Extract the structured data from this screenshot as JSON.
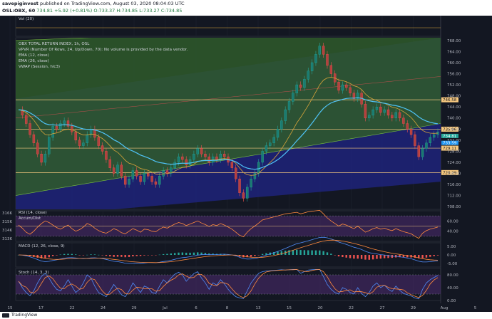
{
  "header": {
    "line1_author": "savepiginvest",
    "line1_rest": "published on TradingView.com, August 03, 2020 08:04:03 UTC",
    "symbol": "OSL:OBX, 60",
    "last": "734.81",
    "change": "+5.92 (+0.81%)",
    "ohlc": "O:733.37 H:734.85 L:733.27 C:734.85"
  },
  "footer": {
    "brand": "TradingView"
  },
  "colors": {
    "background": "#131722",
    "channel_green": "#2f5a2a",
    "channel_blue": "#1e237a",
    "ema12": "#d9a53a",
    "ema26": "#4fc3f7",
    "level_line": "#f5c77e",
    "price_box": "#f5c77e",
    "rsi": "#ff8a3d",
    "rsi_band": "#4a2a6a",
    "stoch_k": "#4f8bf7",
    "stoch_d": "#ff8a3d",
    "macd_line": "#4f8bf7",
    "signal_line": "#ff8a3d"
  },
  "panes": {
    "vol": {
      "label": "Vol (20)"
    },
    "main": {
      "title": "OBX TOTAL RETURN INDEX, 1h, OSL",
      "legend": [
        "VPVR (Number Of Rows, 24, Up/Down, 70): No volume is provided by the data vendor.",
        "EMA (12, close)",
        "EMA (26, close)",
        "VWAP (Session, hlc3)"
      ]
    },
    "rsi": {
      "label": "RSI (14, close)",
      "label2": "Accum/Dist"
    },
    "macd": {
      "label": "MACD (12, 26, close, 9)"
    },
    "stoch": {
      "label": "Stoch (14, 3, 3)"
    }
  },
  "chart_data": [
    {
      "type": "candlestick",
      "title": "OBX TOTAL RETURN INDEX, 1h, OSL",
      "x_ticks": [
        "15",
        "17",
        "22",
        "24",
        "29",
        "Jul",
        "6",
        "8",
        "13",
        "15",
        "20",
        "22",
        "27",
        "29",
        "Aug",
        "5"
      ],
      "y_ticks": [
        708.0,
        712.0,
        716.0,
        720.0,
        724.0,
        728.0,
        732.0,
        736.0,
        740.0,
        744.0,
        748.0,
        752.0,
        756.0,
        760.0,
        764.0,
        768.0
      ],
      "ylim": [
        707.0,
        769.0
      ],
      "price_labels": [
        "746.58",
        "735.96",
        "729.11",
        "720.29"
      ],
      "current_labels": [
        "734.81",
        "733.59"
      ],
      "closes": [
        743,
        741,
        738,
        734,
        731,
        727,
        724,
        727,
        733,
        737,
        736,
        738,
        739,
        737,
        735,
        732,
        730,
        731,
        734,
        736,
        733,
        730,
        728,
        725,
        722,
        720,
        723,
        719,
        716,
        718,
        721,
        719,
        717,
        720,
        719,
        717,
        716,
        719,
        721,
        720,
        722,
        724,
        726,
        725,
        723,
        725,
        727,
        729,
        727,
        726,
        724,
        726,
        725,
        727,
        726,
        724,
        722,
        718,
        713,
        711,
        715,
        718,
        720,
        724,
        728,
        730,
        731,
        733,
        736,
        739,
        743,
        746,
        749,
        752,
        751,
        754,
        757,
        760,
        763,
        766,
        763,
        759,
        756,
        753,
        750,
        752,
        751,
        749,
        747,
        749,
        745,
        740,
        741,
        743,
        744,
        742,
        743,
        741,
        740,
        742,
        740,
        738,
        736,
        734,
        730,
        726,
        729,
        731,
        733,
        734,
        735
      ],
      "levels": [
        746.58,
        735.96,
        729.11,
        720.29
      ],
      "series": [
        {
          "name": "EMA (12, close)"
        },
        {
          "name": "EMA (26, close)"
        },
        {
          "name": "VWAP (Session, hlc3)"
        }
      ]
    },
    {
      "type": "line",
      "title": "RSI (14, close)",
      "y_ticks": [
        80.0,
        60.0,
        40.0,
        20.0
      ],
      "left_ticks": [
        "316K",
        "315K",
        "314K",
        "313K"
      ],
      "bands": [
        70,
        30
      ],
      "ylim": [
        20.0,
        80.0
      ],
      "values": [
        52,
        46,
        38,
        34,
        40,
        48,
        55,
        60,
        57,
        52,
        47,
        44,
        48,
        52,
        45,
        40,
        43,
        48,
        55,
        52,
        46,
        41,
        38,
        36,
        40,
        45,
        42,
        37,
        35,
        40,
        45,
        42,
        38,
        44,
        43,
        40,
        39,
        44,
        48,
        46,
        50,
        54,
        57,
        55,
        51,
        54,
        57,
        60,
        56,
        53,
        49,
        53,
        51,
        55,
        52,
        48,
        44,
        38,
        32,
        29,
        38,
        45,
        50,
        56,
        62,
        64,
        66,
        68,
        70,
        72,
        74,
        75,
        76,
        77,
        74,
        76,
        78,
        79,
        80,
        81,
        74,
        66,
        60,
        55,
        50,
        54,
        52,
        48,
        45,
        50,
        44,
        38,
        41,
        45,
        47,
        44,
        46,
        43,
        41,
        45,
        42,
        39,
        37,
        35,
        30,
        26,
        36,
        41,
        44,
        46,
        48
      ]
    },
    {
      "type": "line",
      "title": "MACD (12, 26, close, 9)",
      "y_ticks": [
        5.0,
        0.0,
        -5.0
      ],
      "ylim": [
        -7.0,
        7.0
      ]
    },
    {
      "type": "line",
      "title": "Stoch (14, 3, 3)",
      "y_ticks": [
        80.0,
        40.0,
        0.0
      ],
      "ylim": [
        0.0,
        100.0
      ],
      "bands": [
        80,
        20
      ],
      "values": [
        60,
        40,
        25,
        15,
        30,
        55,
        75,
        85,
        70,
        50,
        35,
        30,
        45,
        65,
        45,
        25,
        35,
        55,
        80,
        70,
        45,
        25,
        18,
        12,
        30,
        50,
        35,
        18,
        12,
        30,
        55,
        40,
        25,
        45,
        40,
        25,
        22,
        45,
        65,
        55,
        70,
        82,
        88,
        80,
        60,
        72,
        84,
        90,
        70,
        55,
        35,
        55,
        48,
        65,
        52,
        35,
        22,
        12,
        8,
        6,
        30,
        55,
        70,
        85,
        90,
        92,
        93,
        94,
        95,
        96,
        95,
        96,
        97,
        97,
        85,
        90,
        95,
        96,
        97,
        97,
        75,
        50,
        35,
        25,
        20,
        40,
        35,
        25,
        20,
        40,
        22,
        12,
        25,
        45,
        55,
        40,
        48,
        35,
        28,
        45,
        32,
        22,
        18,
        14,
        8,
        5,
        35,
        55,
        65,
        72,
        78
      ]
    }
  ]
}
